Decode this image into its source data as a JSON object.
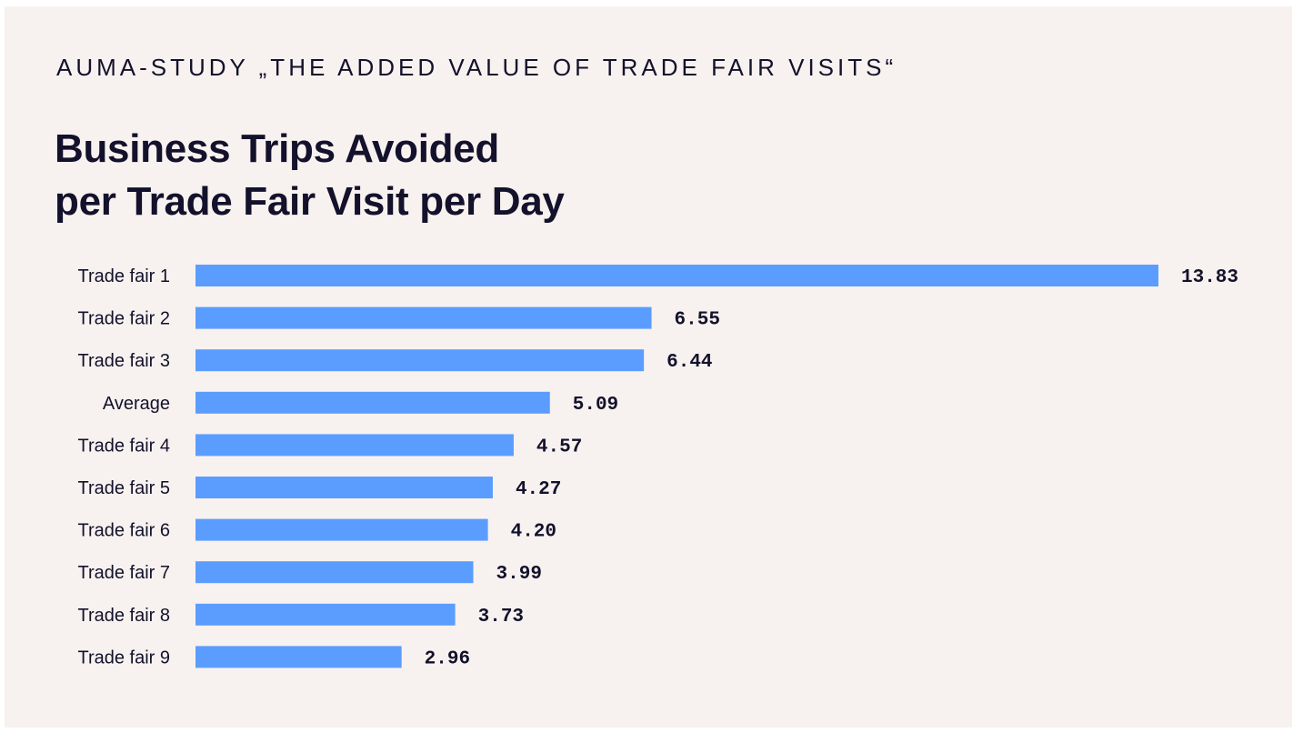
{
  "header": {
    "kicker": "AUMA-STUDY „THE ADDED VALUE OF TRADE FAIR VISITS“",
    "title_line1": "Business Trips Avoided",
    "title_line2": "per Trade Fair Visit per Day"
  },
  "colors": {
    "background": "#f7f2ef",
    "bar": "#5b9dff",
    "text": "#13112b"
  },
  "chart_data": {
    "type": "bar",
    "orientation": "horizontal",
    "title": "Business Trips Avoided per Trade Fair Visit per Day",
    "categories": [
      "Trade fair 1",
      "Trade fair 2",
      "Trade fair 3",
      "Average",
      "Trade fair 4",
      "Trade fair 5",
      "Trade fair 6",
      "Trade fair 7",
      "Trade fair 8",
      "Trade fair 9"
    ],
    "values": [
      13.83,
      6.55,
      6.44,
      5.09,
      4.57,
      4.27,
      4.2,
      3.99,
      3.73,
      2.96
    ],
    "value_labels": [
      "13.83",
      "6.55",
      "6.44",
      "5.09",
      "4.57",
      "4.27",
      "4.20",
      "3.99",
      "3.73",
      "2.96"
    ],
    "xlim": [
      0,
      13.83
    ],
    "grid": false,
    "legend": "none"
  }
}
